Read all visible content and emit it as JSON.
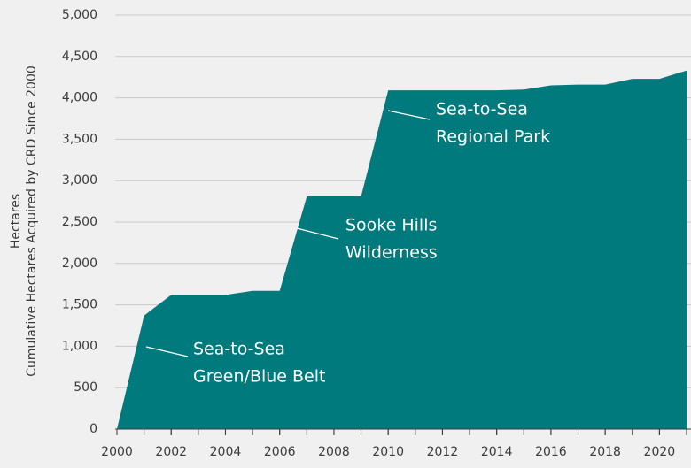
{
  "chart_data": {
    "type": "area",
    "ylabel": [
      "Hectares",
      "Cumulative Hectares Acquired by CRD Since 2000"
    ],
    "x": [
      2000,
      2001,
      2002,
      2003,
      2004,
      2005,
      2006,
      2007,
      2008,
      2009,
      2010,
      2011,
      2012,
      2013,
      2014,
      2015,
      2016,
      2017,
      2018,
      2019,
      2020,
      2021
    ],
    "series": [
      {
        "color": "#007a7c",
        "values": [
          0,
          1370,
          1620,
          1620,
          1620,
          1670,
          1670,
          2810,
          2810,
          2810,
          4090,
          4090,
          4090,
          4090,
          4090,
          4100,
          4150,
          4160,
          4160,
          4230,
          4230,
          4330
        ]
      }
    ],
    "xlim": [
      2000,
      2021
    ],
    "xticks": [
      2000,
      2002,
      2004,
      2006,
      2008,
      2010,
      2012,
      2014,
      2016,
      2018,
      2020
    ],
    "ylim": [
      0,
      5000
    ],
    "yticks": [
      0,
      500,
      {
        "value": 1000,
        "label": "1,000"
      },
      {
        "value": 1500,
        "label": "1,500"
      },
      {
        "value": 2000,
        "label": "2,000"
      },
      {
        "value": 2500,
        "label": "2,500"
      },
      {
        "value": 3000,
        "label": "3,000"
      },
      {
        "value": 3500,
        "label": "3,500"
      },
      {
        "value": 4000,
        "label": "4,000"
      },
      {
        "value": 4500,
        "label": "4,500"
      },
      {
        "value": 5000,
        "label": "5,000"
      }
    ],
    "grid": true,
    "annotations": [
      {
        "lines": [
          "Sea-to-Sea",
          "Green/Blue Belt"
        ]
      },
      {
        "lines": [
          "Sooke Hills",
          "Wilderness"
        ]
      },
      {
        "lines": [
          "Sea-to-Sea",
          "Regional Park"
        ]
      }
    ]
  }
}
